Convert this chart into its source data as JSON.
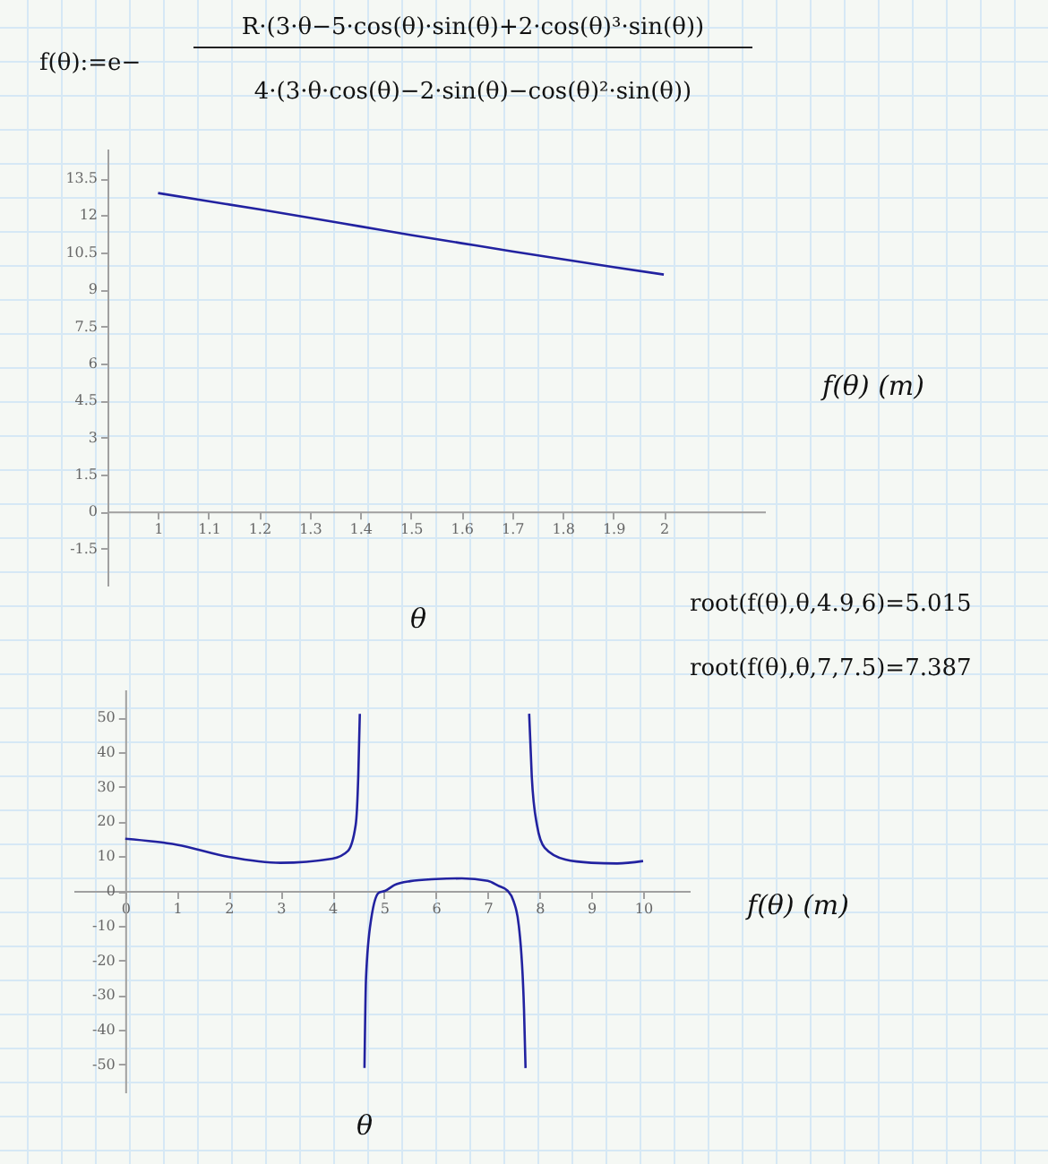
{
  "chart_data": [
    {
      "type": "line",
      "xlabel": "θ",
      "ylabel": "f(θ) (m)",
      "annotations": [
        "f(θ):=e−",
        "R·(3·θ−5·cos(θ)·sin(θ)+2·cos(θ)³·sin(θ))",
        "4·(3·θ·cos(θ)−2·sin(θ)−cos(θ)²·sin(θ))"
      ],
      "xlim": [
        0.9,
        2.2
      ],
      "xticks": [
        1,
        1.1,
        1.2,
        1.3,
        1.4,
        1.5,
        1.6,
        1.7,
        1.8,
        1.9,
        2
      ],
      "ylim": [
        -3,
        14.7
      ],
      "yticks": [
        -1.5,
        0,
        1.5,
        3,
        4.5,
        6,
        7.5,
        9,
        10.5,
        12,
        13.5
      ],
      "series": [
        {
          "color": "#2222a0",
          "x": [
            1,
            1.1,
            1.2,
            1.3,
            1.4,
            1.5,
            1.6,
            1.7,
            1.8,
            1.9,
            2
          ],
          "values": [
            12.9,
            12.57,
            12.24,
            11.9,
            11.55,
            11.2,
            10.87,
            10.54,
            10.22,
            9.9,
            9.6
          ]
        }
      ]
    },
    {
      "type": "line",
      "xlabel": "θ",
      "ylabel": "f(θ) (m)",
      "annotations": [
        "root(f(θ),θ,4.9,6)=5.015",
        "root(f(θ),θ,7,7.5)=7.387"
      ],
      "xlim": [
        -1,
        10.9
      ],
      "xticks": [
        0,
        1,
        2,
        3,
        4,
        5,
        6,
        7,
        8,
        9,
        10
      ],
      "ylim": [
        -58,
        58
      ],
      "yticks": [
        -50,
        -40,
        -30,
        -20,
        -10,
        0,
        10,
        20,
        30,
        40,
        50
      ],
      "series": [
        {
          "color": "#2222a0",
          "x": [
            0,
            1,
            2,
            3,
            4,
            4.3,
            4.45,
            4.5,
            4.53,
            4.57,
            4.62,
            4.65,
            4.75,
            4.9,
            5.015,
            5.2,
            5.5,
            6,
            6.5,
            7,
            7.2,
            7.387,
            7.5,
            7.6,
            7.7,
            7.73,
            7.77,
            7.8,
            7.85,
            7.95,
            8.1,
            8.5,
            9,
            9.5,
            10
          ],
          "values": [
            15,
            13.3,
            9.8,
            8.1,
            9.3,
            11.5,
            19,
            33,
            51,
            null,
            -51,
            -25,
            -8,
            -0.5,
            0,
            1.7,
            2.8,
            3.4,
            3.6,
            2.9,
            1.5,
            0,
            -3,
            -10,
            -34,
            -51,
            null,
            51,
            33,
            19,
            12.4,
            9,
            8.1,
            7.9,
            8.6
          ]
        }
      ]
    }
  ]
}
